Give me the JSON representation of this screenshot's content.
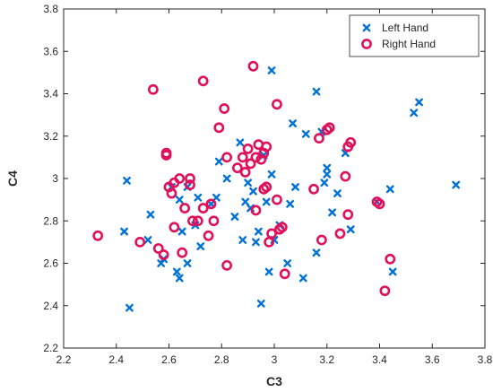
{
  "chart_data": {
    "type": "scatter",
    "xlabel": "C3",
    "ylabel": "C4",
    "xlim": [
      2.2,
      3.8
    ],
    "ylim": [
      2.2,
      3.8
    ],
    "xticks": [
      "2.2",
      "2.4",
      "2.6",
      "2.8",
      "3",
      "3.2",
      "3.4",
      "3.6",
      "3.8"
    ],
    "yticks": [
      "2.2",
      "2.4",
      "2.6",
      "2.8",
      "3",
      "3.2",
      "3.4",
      "3.6",
      "3.8"
    ],
    "grid": false,
    "legend_position": "top-right",
    "series": [
      {
        "name": "Left Hand",
        "marker": "x",
        "color": "#0072d6",
        "points": [
          [
            2.43,
            2.75
          ],
          [
            2.44,
            2.99
          ],
          [
            2.45,
            2.39
          ],
          [
            2.52,
            2.71
          ],
          [
            2.53,
            2.83
          ],
          [
            2.57,
            2.6
          ],
          [
            2.58,
            2.62
          ],
          [
            2.61,
            2.96
          ],
          [
            2.63,
            2.56
          ],
          [
            2.64,
            2.53
          ],
          [
            2.64,
            2.9
          ],
          [
            2.65,
            2.75
          ],
          [
            2.67,
            2.96
          ],
          [
            2.67,
            2.6
          ],
          [
            2.7,
            2.78
          ],
          [
            2.71,
            2.91
          ],
          [
            2.72,
            2.68
          ],
          [
            2.76,
            2.88
          ],
          [
            2.78,
            2.91
          ],
          [
            2.79,
            3.08
          ],
          [
            2.82,
            3.0
          ],
          [
            2.85,
            2.82
          ],
          [
            2.87,
            3.17
          ],
          [
            2.88,
            2.71
          ],
          [
            2.89,
            2.89
          ],
          [
            2.9,
            2.98
          ],
          [
            2.91,
            2.86
          ],
          [
            2.92,
            2.94
          ],
          [
            2.93,
            2.7
          ],
          [
            2.94,
            2.75
          ],
          [
            2.95,
            2.41
          ],
          [
            2.96,
            3.11
          ],
          [
            2.97,
            2.89
          ],
          [
            2.98,
            2.56
          ],
          [
            2.99,
            3.02
          ],
          [
            2.99,
            3.51
          ],
          [
            3.0,
            2.71
          ],
          [
            3.02,
            2.78
          ],
          [
            3.05,
            2.6
          ],
          [
            3.06,
            2.88
          ],
          [
            3.07,
            3.26
          ],
          [
            3.08,
            2.96
          ],
          [
            3.11,
            2.53
          ],
          [
            3.12,
            3.21
          ],
          [
            3.16,
            3.41
          ],
          [
            3.16,
            2.65
          ],
          [
            3.18,
            3.22
          ],
          [
            3.19,
            2.98
          ],
          [
            3.2,
            3.05
          ],
          [
            3.2,
            3.02
          ],
          [
            3.22,
            2.84
          ],
          [
            3.24,
            2.93
          ],
          [
            3.27,
            3.12
          ],
          [
            3.29,
            2.76
          ],
          [
            3.39,
            2.89
          ],
          [
            3.44,
            2.95
          ],
          [
            3.45,
            2.56
          ],
          [
            3.53,
            3.31
          ],
          [
            3.55,
            3.36
          ],
          [
            3.69,
            2.97
          ]
        ]
      },
      {
        "name": "Right Hand",
        "marker": "o",
        "color": "#e0105a",
        "points": [
          [
            2.33,
            2.73
          ],
          [
            2.49,
            2.7
          ],
          [
            2.54,
            3.42
          ],
          [
            2.56,
            2.67
          ],
          [
            2.58,
            2.64
          ],
          [
            2.59,
            3.11
          ],
          [
            2.59,
            3.12
          ],
          [
            2.6,
            2.96
          ],
          [
            2.61,
            2.93
          ],
          [
            2.62,
            2.77
          ],
          [
            2.62,
            2.98
          ],
          [
            2.64,
            3.0
          ],
          [
            2.65,
            2.65
          ],
          [
            2.66,
            2.86
          ],
          [
            2.68,
            3.0
          ],
          [
            2.68,
            2.97
          ],
          [
            2.69,
            2.8
          ],
          [
            2.71,
            2.8
          ],
          [
            2.73,
            2.86
          ],
          [
            2.73,
            3.46
          ],
          [
            2.75,
            2.73
          ],
          [
            2.76,
            2.88
          ],
          [
            2.77,
            2.8
          ],
          [
            2.79,
            3.24
          ],
          [
            2.81,
            3.33
          ],
          [
            2.82,
            3.1
          ],
          [
            2.82,
            2.59
          ],
          [
            2.86,
            3.05
          ],
          [
            2.88,
            3.1
          ],
          [
            2.89,
            3.03
          ],
          [
            2.9,
            3.14
          ],
          [
            2.91,
            3.07
          ],
          [
            2.92,
            3.53
          ],
          [
            2.93,
            3.1
          ],
          [
            2.93,
            2.85
          ],
          [
            2.94,
            3.16
          ],
          [
            2.95,
            3.09
          ],
          [
            2.96,
            3.12
          ],
          [
            2.96,
            2.95
          ],
          [
            2.97,
            3.15
          ],
          [
            2.97,
            2.96
          ],
          [
            2.98,
            2.7
          ],
          [
            2.99,
            2.74
          ],
          [
            3.01,
            2.9
          ],
          [
            3.01,
            3.35
          ],
          [
            3.02,
            2.76
          ],
          [
            3.03,
            2.77
          ],
          [
            3.04,
            2.55
          ],
          [
            3.15,
            2.95
          ],
          [
            3.17,
            3.19
          ],
          [
            3.2,
            3.23
          ],
          [
            3.21,
            3.24
          ],
          [
            3.18,
            2.71
          ],
          [
            3.25,
            2.74
          ],
          [
            3.27,
            3.01
          ],
          [
            3.28,
            3.15
          ],
          [
            3.28,
            2.83
          ],
          [
            3.29,
            3.17
          ],
          [
            3.39,
            2.89
          ],
          [
            3.4,
            2.88
          ],
          [
            3.42,
            2.47
          ],
          [
            3.44,
            2.62
          ]
        ]
      }
    ]
  }
}
